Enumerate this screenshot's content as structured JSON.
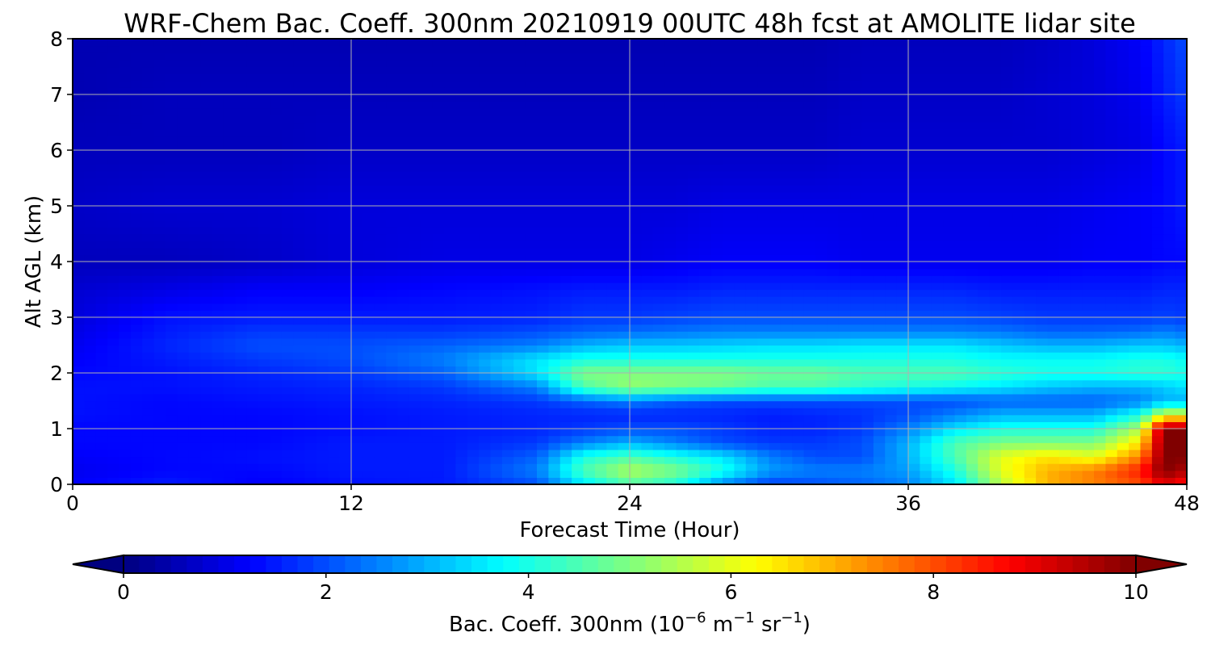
{
  "chart_data": {
    "type": "heatmap",
    "title": "WRF-Chem Bac. Coeff. 300nm  20210919 00UTC 48h fcst at AMOLITE lidar site",
    "xlabel": "Forecast Time (Hour)",
    "ylabel": "Alt AGL (km)",
    "xlim": [
      0,
      48
    ],
    "ylim": [
      0,
      8
    ],
    "x_ticks": [
      "0",
      "12",
      "24",
      "36",
      "48"
    ],
    "y_ticks": [
      "0",
      "1",
      "2",
      "3",
      "4",
      "5",
      "6",
      "7",
      "8"
    ],
    "grid": true,
    "colorbar": {
      "label": "Bac. Coeff. 300nm  (10",
      "label_exp": "−6",
      "label_mid": " m",
      "label_exp2": "−1",
      "label_end": " sr",
      "label_exp3": "−1",
      "label_close": ")",
      "range": [
        0,
        10
      ],
      "ticks": [
        "0",
        "2",
        "4",
        "6",
        "8",
        "10"
      ],
      "colormap": "jet",
      "extend": "both"
    },
    "x": [
      0,
      4,
      8,
      12,
      16,
      20,
      22,
      24,
      26,
      28,
      30,
      32,
      34,
      36,
      38,
      40,
      42,
      44,
      46,
      47,
      48
    ],
    "y": [
      0,
      0.25,
      0.5,
      0.75,
      1.0,
      1.25,
      1.5,
      1.75,
      2.0,
      2.25,
      2.5,
      2.75,
      3.0,
      3.5,
      4.0,
      5.0,
      6.0,
      7.0,
      8.0
    ],
    "z": [
      [
        1.2,
        1.5,
        1.2,
        1.4,
        1.5,
        2.0,
        3.5,
        4.5,
        4.0,
        2.5,
        1.8,
        2.0,
        2.2,
        2.5,
        3.5,
        5.5,
        7.0,
        7.5,
        8.0,
        9.0,
        8.5
      ],
      [
        1.1,
        1.3,
        1.3,
        1.5,
        1.5,
        2.5,
        4.5,
        5.5,
        5.0,
        4.0,
        2.8,
        2.5,
        2.5,
        2.8,
        4.0,
        6.0,
        7.0,
        7.5,
        8.5,
        10.0,
        9.5
      ],
      [
        1.2,
        1.3,
        1.4,
        1.5,
        1.5,
        2.2,
        4.0,
        4.5,
        4.0,
        3.5,
        2.5,
        2.0,
        2.0,
        3.0,
        4.5,
        6.0,
        6.5,
        6.0,
        7.5,
        10.0,
        10.0
      ],
      [
        1.3,
        1.3,
        1.3,
        1.5,
        1.5,
        1.8,
        2.5,
        3.0,
        2.5,
        2.0,
        1.8,
        1.8,
        2.0,
        3.0,
        4.5,
        5.0,
        5.0,
        5.0,
        6.5,
        10.0,
        10.0
      ],
      [
        1.3,
        1.3,
        1.3,
        1.4,
        1.5,
        1.6,
        1.8,
        2.0,
        2.0,
        1.8,
        1.6,
        1.6,
        1.8,
        2.5,
        3.5,
        4.0,
        4.0,
        4.0,
        5.5,
        10.0,
        10.0
      ],
      [
        1.4,
        1.3,
        1.3,
        1.4,
        1.5,
        1.6,
        1.6,
        1.6,
        1.6,
        1.6,
        1.5,
        1.6,
        1.7,
        2.0,
        2.5,
        3.0,
        3.0,
        3.0,
        4.0,
        6.0,
        6.0
      ],
      [
        1.4,
        1.3,
        1.4,
        1.5,
        1.6,
        1.8,
        2.2,
        2.5,
        2.2,
        2.0,
        2.0,
        2.0,
        2.0,
        2.0,
        2.0,
        2.2,
        2.2,
        2.2,
        2.5,
        3.0,
        3.0
      ],
      [
        1.4,
        1.4,
        1.5,
        1.6,
        1.8,
        2.5,
        4.5,
        5.2,
        5.0,
        4.8,
        4.5,
        4.5,
        4.2,
        4.0,
        3.8,
        3.5,
        3.2,
        3.0,
        3.0,
        3.2,
        3.5
      ],
      [
        1.3,
        1.4,
        1.6,
        1.8,
        2.2,
        3.5,
        5.0,
        5.0,
        5.0,
        5.0,
        4.8,
        4.8,
        4.5,
        4.5,
        4.5,
        4.2,
        4.0,
        4.0,
        4.2,
        4.2,
        4.0
      ],
      [
        1.2,
        1.5,
        1.8,
        2.0,
        2.5,
        3.5,
        4.0,
        4.0,
        4.0,
        4.0,
        4.0,
        4.0,
        4.0,
        4.0,
        4.0,
        3.8,
        3.8,
        3.8,
        4.0,
        4.0,
        3.8
      ],
      [
        1.1,
        1.6,
        2.0,
        2.0,
        2.2,
        2.5,
        3.0,
        3.2,
        3.2,
        3.3,
        3.4,
        3.4,
        3.5,
        3.5,
        3.5,
        3.2,
        3.0,
        3.0,
        3.2,
        3.2,
        3.0
      ],
      [
        1.0,
        1.5,
        1.8,
        1.8,
        1.8,
        2.0,
        2.2,
        2.3,
        2.4,
        2.5,
        2.5,
        2.5,
        2.5,
        2.5,
        2.5,
        2.4,
        2.2,
        2.2,
        2.3,
        2.5,
        2.3
      ],
      [
        0.9,
        1.4,
        1.5,
        1.5,
        1.5,
        1.6,
        1.8,
        1.8,
        1.9,
        2.0,
        2.0,
        2.0,
        2.0,
        2.0,
        2.0,
        1.9,
        1.8,
        1.8,
        1.8,
        1.9,
        1.8
      ],
      [
        0.8,
        1.0,
        1.2,
        1.2,
        1.3,
        1.4,
        1.5,
        1.5,
        1.5,
        1.6,
        1.6,
        1.6,
        1.6,
        1.6,
        1.6,
        1.5,
        1.5,
        1.5,
        1.5,
        1.6,
        1.6
      ],
      [
        0.6,
        0.6,
        0.7,
        0.9,
        1.0,
        1.0,
        1.0,
        1.0,
        1.1,
        1.2,
        1.2,
        1.2,
        1.1,
        1.1,
        1.1,
        1.1,
        1.1,
        1.2,
        1.2,
        1.3,
        1.3
      ],
      [
        0.7,
        0.8,
        0.8,
        0.9,
        0.9,
        0.9,
        0.9,
        0.9,
        0.9,
        1.0,
        1.0,
        1.0,
        1.0,
        1.0,
        1.0,
        1.0,
        1.0,
        1.1,
        1.2,
        1.3,
        1.5
      ],
      [
        0.6,
        0.6,
        0.6,
        0.7,
        0.7,
        0.7,
        0.7,
        0.7,
        0.7,
        0.7,
        0.7,
        0.7,
        0.8,
        0.8,
        0.8,
        0.8,
        0.8,
        0.9,
        1.0,
        1.3,
        1.5
      ],
      [
        0.5,
        0.6,
        0.6,
        0.6,
        0.6,
        0.6,
        0.6,
        0.6,
        0.6,
        0.6,
        0.6,
        0.6,
        0.7,
        0.7,
        0.7,
        0.7,
        0.8,
        0.9,
        1.1,
        1.5,
        1.8
      ],
      [
        0.5,
        0.5,
        0.5,
        0.5,
        0.5,
        0.5,
        0.5,
        0.5,
        0.5,
        0.5,
        0.5,
        0.5,
        0.6,
        0.6,
        0.6,
        0.6,
        0.7,
        0.9,
        1.2,
        1.6,
        2.0
      ]
    ]
  }
}
